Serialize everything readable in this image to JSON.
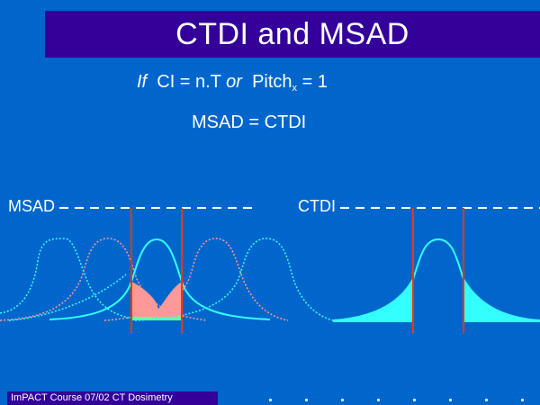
{
  "title": "CTDI and MSAD",
  "equation1": {
    "if_word": "If",
    "lhs": "CI = n.T",
    "or_word": "or",
    "pitch": "Pitch",
    "pitch_sub": "x",
    "rhs": "= 1"
  },
  "equation2": "MSAD = CTDI",
  "labels": {
    "msad": "MSAD",
    "ctdi": "CTDI"
  },
  "footer": "ImPACT Course 07/02 CT Dosimetry",
  "colors": {
    "background": "#0066cc",
    "title_bar": "#330099",
    "profile_cyan": "#33ffff",
    "profile_pink": "#ff9999",
    "profile_green": "#66ff99",
    "marker_red": "#ff3300",
    "dashed_line": "#ffffff"
  }
}
